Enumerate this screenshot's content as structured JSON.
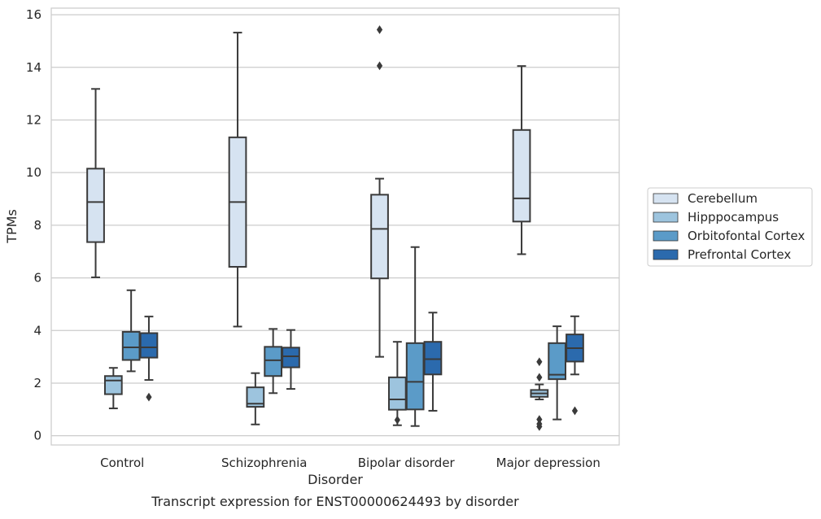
{
  "chart_data": {
    "type": "box",
    "title": "",
    "caption": "Transcript expression for ENST00000624493 by disorder",
    "xlabel": "Disorder",
    "ylabel": "TPMs",
    "ylim": [
      -0.35,
      16.25
    ],
    "yticks": [
      0,
      2,
      4,
      6,
      8,
      10,
      12,
      14,
      16
    ],
    "grid": "horizontal",
    "legend_position": "right",
    "categories": [
      "Control",
      "Schizophrenia",
      "Bipolar disorder",
      "Major depression"
    ],
    "series": [
      {
        "name": "Cerebellum",
        "color": "#d6e3f1",
        "boxes": [
          {
            "whisker_low": 6.02,
            "q1": 7.36,
            "median": 8.88,
            "q3": 10.15,
            "whisker_high": 13.18,
            "outliers": []
          },
          {
            "whisker_low": 4.15,
            "q1": 6.42,
            "median": 8.88,
            "q3": 11.34,
            "whisker_high": 15.32,
            "outliers": []
          },
          {
            "whisker_low": 3.0,
            "q1": 5.98,
            "median": 7.86,
            "q3": 9.16,
            "whisker_high": 9.77,
            "outliers": [
              14.06,
              15.43
            ]
          },
          {
            "whisker_low": 6.9,
            "q1": 8.14,
            "median": 9.02,
            "q3": 11.62,
            "whisker_high": 14.05,
            "outliers": []
          }
        ]
      },
      {
        "name": "Hipppocampus",
        "color": "#9dc4de",
        "boxes": [
          {
            "whisker_low": 1.04,
            "q1": 1.58,
            "median": 2.1,
            "q3": 2.27,
            "whisker_high": 2.58,
            "outliers": []
          },
          {
            "whisker_low": 0.43,
            "q1": 1.1,
            "median": 1.22,
            "q3": 1.84,
            "whisker_high": 2.38,
            "outliers": []
          },
          {
            "whisker_low": 0.4,
            "q1": 0.99,
            "median": 1.38,
            "q3": 2.22,
            "whisker_high": 3.57,
            "outliers": [
              0.6
            ]
          },
          {
            "whisker_low": 1.38,
            "q1": 1.48,
            "median": 1.61,
            "q3": 1.74,
            "whisker_high": 1.95,
            "outliers": [
              0.35,
              0.45,
              0.62,
              2.22,
              2.81
            ]
          }
        ]
      },
      {
        "name": "Orbitofontal Cortex",
        "color": "#5b9bc8",
        "boxes": [
          {
            "whisker_low": 2.45,
            "q1": 2.88,
            "median": 3.36,
            "q3": 3.95,
            "whisker_high": 5.53,
            "outliers": []
          },
          {
            "whisker_low": 1.62,
            "q1": 2.27,
            "median": 2.87,
            "q3": 3.38,
            "whisker_high": 4.06,
            "outliers": []
          },
          {
            "whisker_low": 0.37,
            "q1": 1.0,
            "median": 2.05,
            "q3": 3.52,
            "whisker_high": 7.17,
            "outliers": []
          },
          {
            "whisker_low": 0.62,
            "q1": 2.15,
            "median": 2.32,
            "q3": 3.52,
            "whisker_high": 4.16,
            "outliers": []
          }
        ]
      },
      {
        "name": "Prefrontal Cortex",
        "color": "#2b6aad",
        "boxes": [
          {
            "whisker_low": 2.12,
            "q1": 2.97,
            "median": 3.36,
            "q3": 3.9,
            "whisker_high": 4.53,
            "outliers": [
              1.47
            ]
          },
          {
            "whisker_low": 1.78,
            "q1": 2.6,
            "median": 3.02,
            "q3": 3.35,
            "whisker_high": 4.02,
            "outliers": []
          },
          {
            "whisker_low": 0.95,
            "q1": 2.33,
            "median": 2.91,
            "q3": 3.57,
            "whisker_high": 4.68,
            "outliers": []
          },
          {
            "whisker_low": 2.33,
            "q1": 2.82,
            "median": 3.33,
            "q3": 3.85,
            "whisker_high": 4.54,
            "outliers": [
              0.95
            ]
          }
        ]
      }
    ]
  }
}
